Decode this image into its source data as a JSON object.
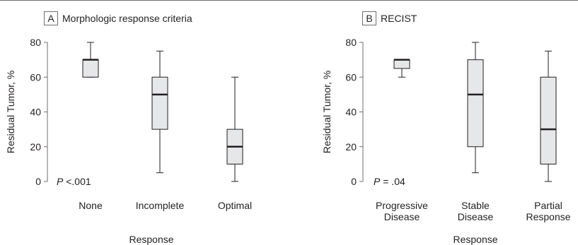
{
  "chart_data": [
    {
      "type": "box",
      "panel_label": "A",
      "title": "Morphologic response criteria",
      "ylabel": "Residual Tumor, %",
      "xlabel": "Response",
      "ylim": [
        0,
        80
      ],
      "yticks": [
        0,
        20,
        40,
        60,
        80
      ],
      "annotation": {
        "italic": "P",
        "text": " <.001"
      },
      "categories": [
        [
          "None"
        ],
        [
          "Incomplete"
        ],
        [
          "Optimal"
        ]
      ],
      "boxes": [
        {
          "min": 60,
          "q1": 60,
          "median": 70,
          "q3": 70,
          "max": 80
        },
        {
          "min": 5,
          "q1": 30,
          "median": 50,
          "q3": 60,
          "max": 75
        },
        {
          "min": 0,
          "q1": 10,
          "median": 20,
          "q3": 30,
          "max": 60
        }
      ]
    },
    {
      "type": "box",
      "panel_label": "B",
      "title": "RECIST",
      "ylabel": "Residual Tumor, %",
      "xlabel": "Response",
      "ylim": [
        0,
        80
      ],
      "yticks": [
        0,
        20,
        40,
        60,
        80
      ],
      "annotation": {
        "italic": "P",
        "text": " = .04"
      },
      "categories": [
        [
          "Progressive",
          "Disease"
        ],
        [
          "Stable",
          "Disease"
        ],
        [
          "Partial",
          "Response"
        ]
      ],
      "boxes": [
        {
          "min": 60,
          "q1": 65,
          "median": 70,
          "q3": 70,
          "max": 70
        },
        {
          "min": 5,
          "q1": 20,
          "median": 50,
          "q3": 70,
          "max": 80
        },
        {
          "min": 0,
          "q1": 10,
          "median": 30,
          "q3": 60,
          "max": 75
        }
      ]
    }
  ],
  "colors": {
    "box_fill": "#e6e7e8",
    "stroke": "#231f20",
    "axis": "#6d6e70"
  }
}
